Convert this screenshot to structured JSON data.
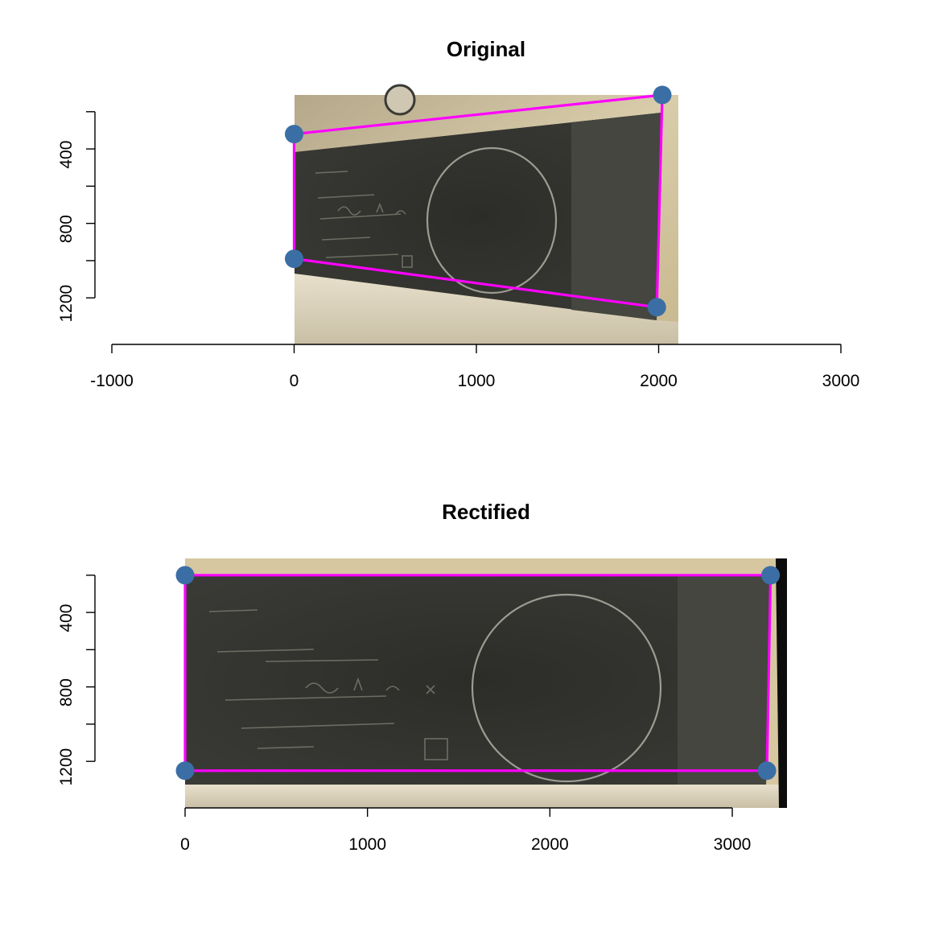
{
  "chart_data": [
    {
      "type": "scatter",
      "title": "Original",
      "xlabel": "",
      "ylabel": "",
      "xlim": [
        -1000,
        3000
      ],
      "ylim": [
        1450,
        110
      ],
      "y_reversed": true,
      "x_ticks": [
        -1000,
        0,
        1000,
        2000,
        3000
      ],
      "x_tick_labels": [
        "-1000",
        "0",
        "1000",
        "2000",
        "3000"
      ],
      "y_ticks": [
        200,
        400,
        600,
        800,
        1000,
        1200
      ],
      "y_tick_labels": [
        "",
        "400",
        "",
        "800",
        "",
        "1200"
      ],
      "background_image": {
        "x_range": [
          0,
          2100
        ],
        "y_range": [
          110,
          1450
        ]
      },
      "points": [
        {
          "x": 0,
          "y": 320
        },
        {
          "x": 2020,
          "y": 110
        },
        {
          "x": 1990,
          "y": 1250
        },
        {
          "x": 0,
          "y": 990
        }
      ],
      "polygon_color": "#ff00ff",
      "point_color": "#3b6ea5"
    },
    {
      "type": "scatter",
      "title": "Rectified",
      "xlabel": "",
      "ylabel": "",
      "xlim": [
        0,
        3300
      ],
      "ylim": [
        1450,
        110
      ],
      "y_reversed": true,
      "x_ticks": [
        0,
        1000,
        2000,
        3000
      ],
      "x_tick_labels": [
        "0",
        "1000",
        "2000",
        "3000"
      ],
      "y_ticks": [
        200,
        400,
        600,
        800,
        1000,
        1200
      ],
      "y_tick_labels": [
        "",
        "400",
        "",
        "800",
        "",
        "1200"
      ],
      "background_image": {
        "x_range": [
          0,
          3300
        ],
        "y_range": [
          110,
          1450
        ]
      },
      "points": [
        {
          "x": 0,
          "y": 200
        },
        {
          "x": 3210,
          "y": 200
        },
        {
          "x": 3190,
          "y": 1250
        },
        {
          "x": 0,
          "y": 1250
        }
      ],
      "polygon_color": "#ff00ff",
      "point_color": "#3b6ea5"
    }
  ]
}
